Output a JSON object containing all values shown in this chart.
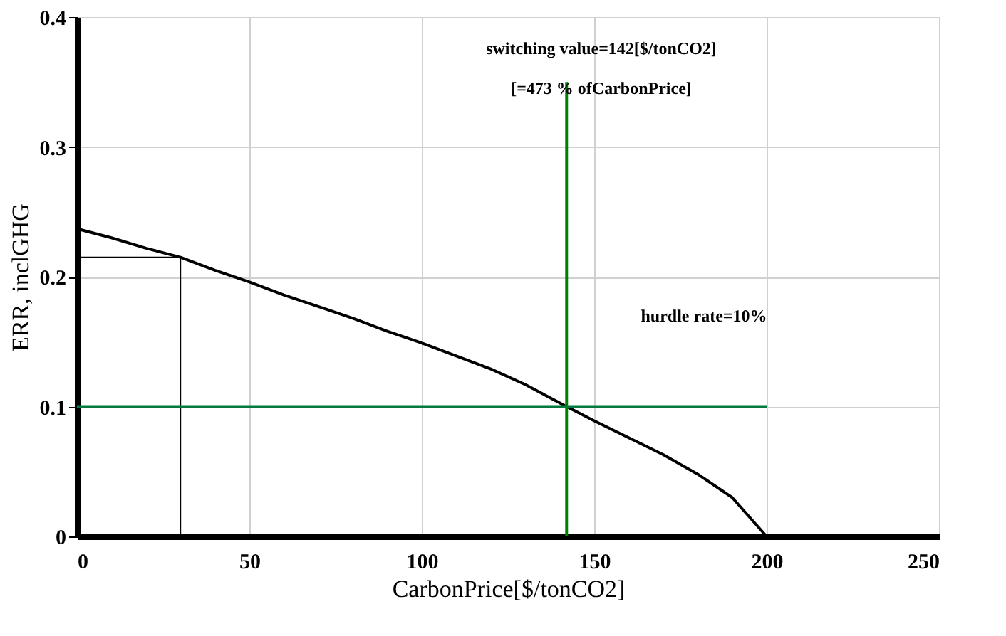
{
  "chart_data": {
    "type": "line",
    "xlabel": "CarbonPrice[$/tonCO2]",
    "ylabel": "ERR, inclGHG",
    "xlim": [
      0,
      250
    ],
    "xticks": [
      0,
      50,
      100,
      150,
      200,
      250
    ],
    "ylim": [
      0,
      0.4
    ],
    "yticks": [
      0,
      0.1,
      0.2,
      0.3,
      0.4
    ],
    "grid": true,
    "marker": "none",
    "line_style": "solid",
    "series": [
      {
        "color": "#000000",
        "x": [
          0,
          10,
          20,
          30,
          40,
          50,
          60,
          70,
          80,
          90,
          100,
          110,
          120,
          130,
          142,
          150,
          160,
          170,
          180,
          190,
          200
        ],
        "values": [
          0.237,
          0.23,
          0.222,
          0.215,
          0.205,
          0.196,
          0.186,
          0.177,
          0.168,
          0.158,
          0.149,
          0.139,
          0.129,
          0.117,
          0.1,
          0.089,
          0.076,
          0.063,
          0.048,
          0.03,
          0
        ]
      },
      {
        "color": "#000000",
        "x": [
          0,
          30,
          30
        ],
        "values": [
          0.215,
          0.215,
          0
        ]
      },
      {
        "color": "#008000",
        "x": [
          142,
          142
        ],
        "values": [
          0,
          0.35
        ]
      },
      {
        "color": "#007a3d",
        "x": [
          0,
          200
        ],
        "values": [
          0.1,
          0.1
        ]
      }
    ],
    "annotations": [
      "switching value=142[$/tonCO2]",
      "[=473 % ofCarbonPrice]",
      "hurdle rate=10%"
    ]
  }
}
